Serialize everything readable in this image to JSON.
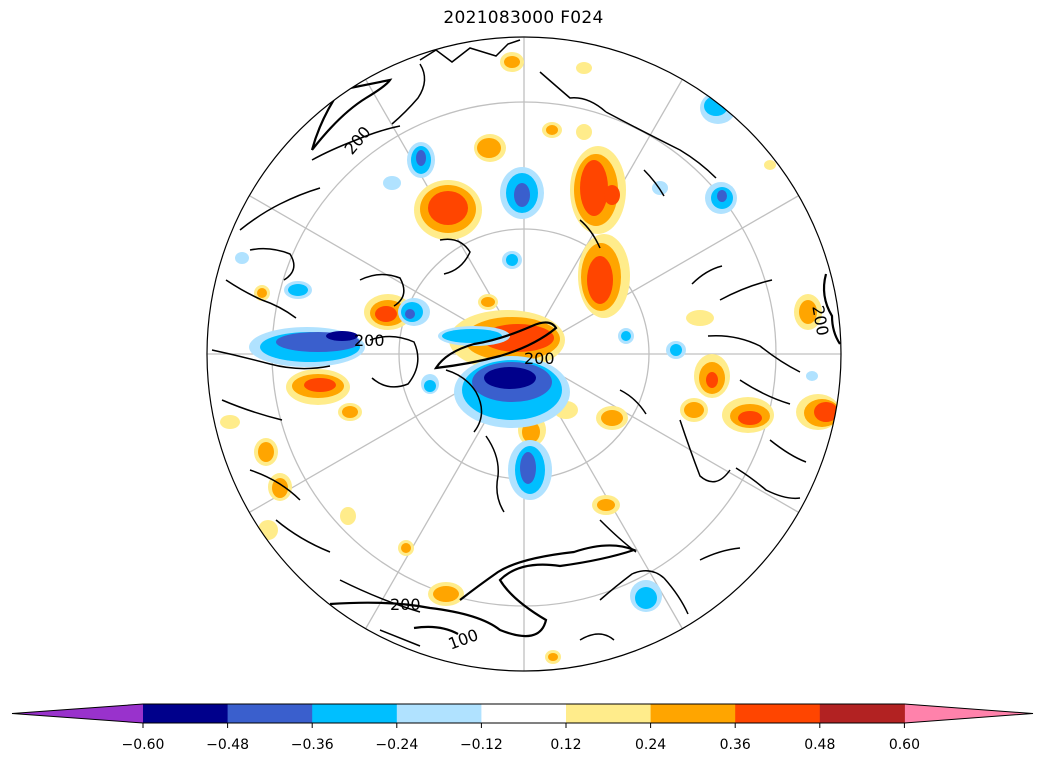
{
  "title": "2021083000 F024",
  "map": {
    "projection": "north-polar-stereographic",
    "contour_labels": [
      "200",
      "200",
      "200",
      "200",
      "200",
      "100"
    ]
  },
  "colorbar": {
    "levels": [
      -0.6,
      -0.48,
      -0.36,
      -0.24,
      -0.12,
      0.12,
      0.24,
      0.36,
      0.48,
      0.6
    ],
    "tick_labels": [
      "−0.60",
      "−0.48",
      "−0.36",
      "−0.24",
      "−0.12",
      "0.12",
      "0.24",
      "0.36",
      "0.48",
      "0.60"
    ],
    "colors": [
      "#9932cc",
      "#00008b",
      "#3a5fcd",
      "#00bfff",
      "#b0e2ff",
      "#ffffff",
      "#ffec8b",
      "#ffa500",
      "#ff4500",
      "#b22222",
      "#ff82ab"
    ],
    "extend": "both"
  }
}
